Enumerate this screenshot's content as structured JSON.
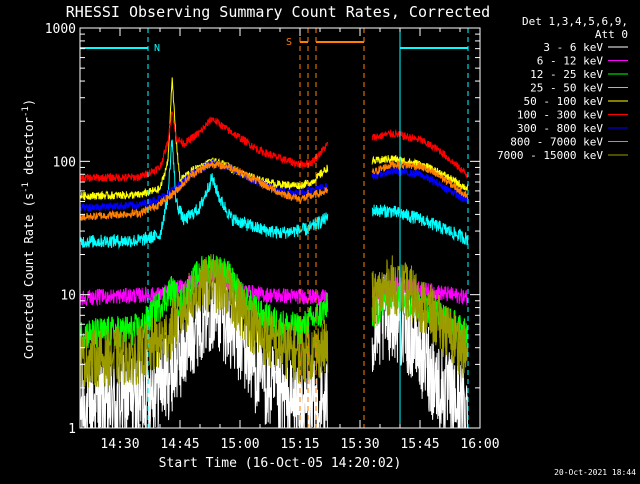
{
  "chart_data": {
    "type": "line",
    "title": "RHESSI Observing Summary Count Rates, Corrected",
    "xlabel": "Start Time (16-Oct-05 14:20:02)",
    "ylabel_main": "Corrected Count Rate (s",
    "ylabel_sup1": "-1",
    "ylabel_mid": " detector",
    "ylabel_sup2": "-1",
    "ylabel_end": ")",
    "yscale": "log",
    "ylim": [
      1,
      1000
    ],
    "xlim": [
      "14:20",
      "16:00"
    ],
    "x_ticks": [
      "14:30",
      "14:45",
      "15:00",
      "15:15",
      "15:30",
      "15:45",
      "16:00"
    ],
    "y_ticks": [
      "1",
      "10",
      "100",
      "1000"
    ],
    "grid": false,
    "legend_position": "top-right",
    "legend_header": [
      "Det 1,3,4,5,6,9,",
      "Att 0"
    ],
    "timestamp": "20-Oct-2021 18:44",
    "annotations": {
      "night_label": "N",
      "saa_label": "S"
    },
    "colors": {
      "background": "#000000",
      "axes": "#ffffff",
      "night": "#00ffff",
      "saa": "#ff7f00"
    },
    "data_gaps": [
      [
        "15:22",
        "15:33"
      ]
    ],
    "night_intervals": [
      [
        "14:20",
        "14:37"
      ],
      [
        "15:40",
        "15:57"
      ]
    ],
    "saa_intervals": [
      [
        "15:15",
        "15:17"
      ],
      [
        "15:19",
        "15:31"
      ]
    ],
    "series": [
      {
        "name": "3 - 6 keV",
        "color": "#ffffff",
        "noise": 0.35,
        "points": [
          [
            "14:20",
            1.4
          ],
          [
            "14:35",
            1.7
          ],
          [
            "14:42",
            2.5
          ],
          [
            "14:46",
            4
          ],
          [
            "14:50",
            7
          ],
          [
            "14:53",
            8.5
          ],
          [
            "14:56",
            7
          ],
          [
            "15:00",
            4.5
          ],
          [
            "15:05",
            2.5
          ],
          [
            "15:10",
            1.6
          ],
          [
            "15:16",
            1.4
          ],
          [
            "15:22",
            1.5
          ],
          [
            "15:33",
            5
          ],
          [
            "15:38",
            7.5
          ],
          [
            "15:43",
            5
          ],
          [
            "15:50",
            2
          ],
          [
            "15:57",
            1.3
          ]
        ]
      },
      {
        "name": "6 - 12 keV",
        "color": "#ff00ff",
        "noise": 0.06,
        "points": [
          [
            "14:20",
            9.5
          ],
          [
            "14:40",
            10
          ],
          [
            "14:44",
            11
          ],
          [
            "14:48",
            12.5
          ],
          [
            "14:53",
            14
          ],
          [
            "14:56",
            13
          ],
          [
            "15:00",
            11
          ],
          [
            "15:05",
            10
          ],
          [
            "15:22",
            9.5
          ],
          [
            "15:33",
            10
          ],
          [
            "15:39",
            12
          ],
          [
            "15:45",
            11
          ],
          [
            "15:57",
            9.5
          ]
        ]
      },
      {
        "name": "12 - 25 keV",
        "color": "#00ff00",
        "noise": 0.12,
        "points": [
          [
            "14:20",
            5
          ],
          [
            "14:35",
            5.5
          ],
          [
            "14:43",
            11
          ],
          [
            "14:45",
            8.5
          ],
          [
            "14:50",
            15
          ],
          [
            "14:53",
            16
          ],
          [
            "14:57",
            14
          ],
          [
            "15:00",
            10
          ],
          [
            "15:05",
            7
          ],
          [
            "15:10",
            6
          ],
          [
            "15:15",
            5.5
          ],
          [
            "15:22",
            8
          ],
          [
            "15:33",
            7
          ],
          [
            "15:38",
            10
          ],
          [
            "15:42",
            9
          ],
          [
            "15:50",
            7
          ],
          [
            "15:57",
            5
          ]
        ]
      },
      {
        "name": "25 - 50 keV",
        "color": "#00ffff",
        "noise": 0.05,
        "points": [
          [
            "14:20",
            25
          ],
          [
            "14:35",
            25.5
          ],
          [
            "14:40",
            28
          ],
          [
            "14:42",
            55
          ],
          [
            "14:43",
            150
          ],
          [
            "14:44",
            50
          ],
          [
            "14:46",
            36
          ],
          [
            "14:50",
            45
          ],
          [
            "14:53",
            75
          ],
          [
            "14:55",
            52
          ],
          [
            "14:58",
            37
          ],
          [
            "15:05",
            31
          ],
          [
            "15:10",
            29
          ],
          [
            "15:17",
            31
          ],
          [
            "15:22",
            38
          ],
          [
            "15:33",
            43
          ],
          [
            "15:38",
            42
          ],
          [
            "15:45",
            37
          ],
          [
            "15:50",
            32
          ],
          [
            "15:57",
            26
          ]
        ]
      },
      {
        "name": "50 - 100 keV",
        "color": "#ffff00",
        "noise": 0.03,
        "points": [
          [
            "14:20",
            55
          ],
          [
            "14:35",
            56
          ],
          [
            "14:40",
            62
          ],
          [
            "14:42",
            100
          ],
          [
            "14:43",
            420
          ],
          [
            "14:44",
            150
          ],
          [
            "14:45",
            72
          ],
          [
            "14:48",
            85
          ],
          [
            "14:53",
            100
          ],
          [
            "14:57",
            92
          ],
          [
            "15:00",
            82
          ],
          [
            "15:05",
            72
          ],
          [
            "15:10",
            67
          ],
          [
            "15:15",
            66
          ],
          [
            "15:18",
            70
          ],
          [
            "15:22",
            90
          ],
          [
            "15:33",
            100
          ],
          [
            "15:38",
            105
          ],
          [
            "15:45",
            95
          ],
          [
            "15:50",
            82
          ],
          [
            "15:57",
            62
          ]
        ]
      },
      {
        "name": "100 - 300 keV",
        "color": "#ff0000",
        "noise": 0.03,
        "points": [
          [
            "14:20",
            75
          ],
          [
            "14:35",
            76
          ],
          [
            "14:40",
            90
          ],
          [
            "14:42",
            140
          ],
          [
            "14:43",
            245
          ],
          [
            "14:44",
            150
          ],
          [
            "14:46",
            135
          ],
          [
            "14:50",
            165
          ],
          [
            "14:53",
            210
          ],
          [
            "14:56",
            180
          ],
          [
            "15:00",
            150
          ],
          [
            "15:05",
            120
          ],
          [
            "15:10",
            105
          ],
          [
            "15:15",
            95
          ],
          [
            "15:18",
            98
          ],
          [
            "15:22",
            135
          ],
          [
            "15:33",
            150
          ],
          [
            "15:38",
            162
          ],
          [
            "15:45",
            145
          ],
          [
            "15:50",
            120
          ],
          [
            "15:57",
            78
          ]
        ]
      },
      {
        "name": "300 - 800 keV",
        "color": "#0000ff",
        "noise": 0.03,
        "points": [
          [
            "14:20",
            45
          ],
          [
            "14:35",
            47
          ],
          [
            "14:40",
            53
          ],
          [
            "14:44",
            63
          ],
          [
            "14:48",
            80
          ],
          [
            "14:53",
            97
          ],
          [
            "14:58",
            88
          ],
          [
            "15:03",
            72
          ],
          [
            "15:10",
            60
          ],
          [
            "15:15",
            58
          ],
          [
            "15:22",
            65
          ],
          [
            "15:33",
            77
          ],
          [
            "15:38",
            85
          ],
          [
            "15:45",
            80
          ],
          [
            "15:50",
            67
          ],
          [
            "15:57",
            50
          ]
        ]
      },
      {
        "name": "800 - 7000 keV",
        "color": "#ff7f00",
        "noise": 0.03,
        "points": [
          [
            "14:20",
            38
          ],
          [
            "14:35",
            41
          ],
          [
            "14:40",
            48
          ],
          [
            "14:44",
            60
          ],
          [
            "14:48",
            80
          ],
          [
            "14:53",
            96
          ],
          [
            "14:58",
            90
          ],
          [
            "15:03",
            74
          ],
          [
            "15:10",
            58
          ],
          [
            "15:15",
            52
          ],
          [
            "15:22",
            60
          ],
          [
            "15:33",
            82
          ],
          [
            "15:38",
            95
          ],
          [
            "15:45",
            92
          ],
          [
            "15:50",
            77
          ],
          [
            "15:57",
            55
          ]
        ]
      },
      {
        "name": "7000 - 15000 keV",
        "color": "#9b9b00",
        "noise": 0.22,
        "points": [
          [
            "14:20",
            3.3
          ],
          [
            "14:35",
            3.5
          ],
          [
            "14:42",
            5
          ],
          [
            "14:46",
            8
          ],
          [
            "14:50",
            11
          ],
          [
            "14:53",
            12.5
          ],
          [
            "14:56",
            11
          ],
          [
            "15:00",
            8
          ],
          [
            "15:05",
            5
          ],
          [
            "15:10",
            4
          ],
          [
            "15:15",
            3.5
          ],
          [
            "15:22",
            4
          ],
          [
            "15:33",
            9
          ],
          [
            "15:38",
            12
          ],
          [
            "15:43",
            10
          ],
          [
            "15:50",
            6
          ],
          [
            "15:57",
            3.5
          ]
        ]
      }
    ]
  }
}
